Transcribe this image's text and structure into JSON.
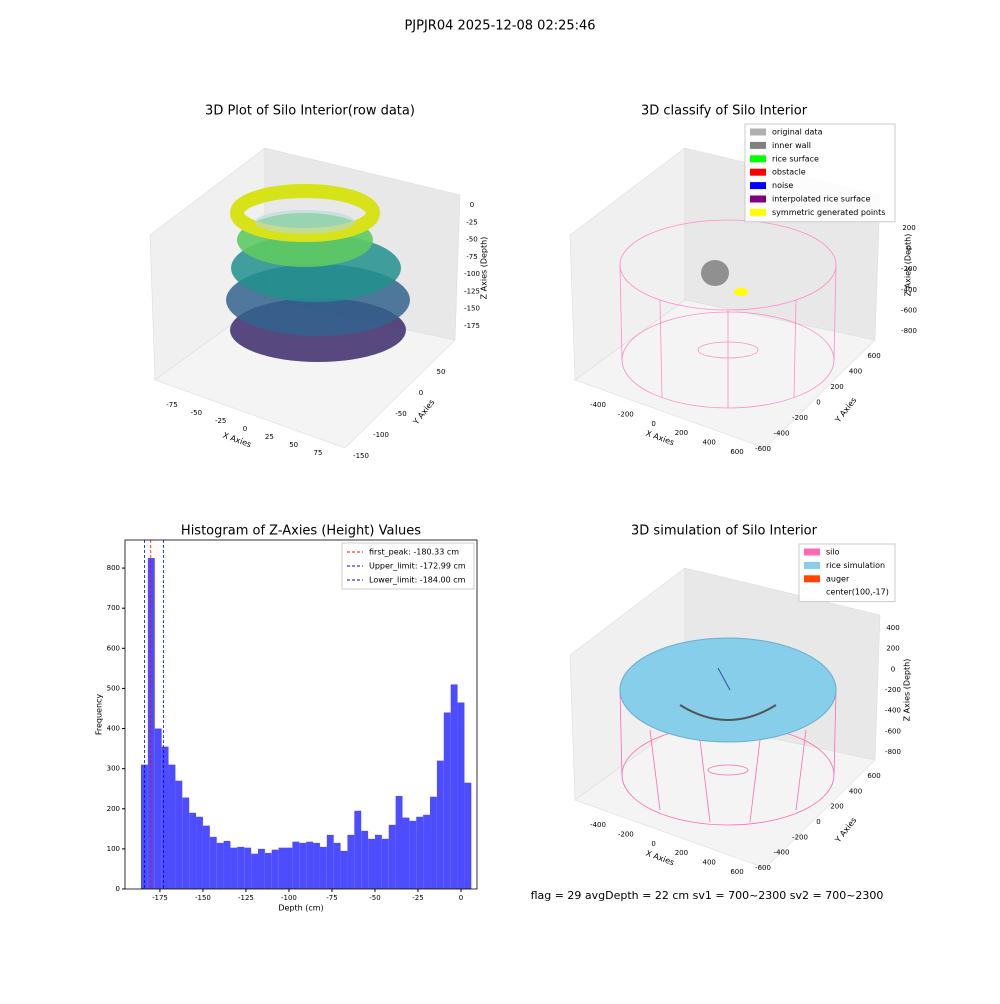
{
  "title": "PJPJR04 2025-12-08 02:25:46",
  "footer": "flag = 29  avgDepth = 22 cm    sv1 = 700~2300  sv2 = 700~2300",
  "chart_data": [
    {
      "type": "scatter3d",
      "title": "3D Plot of Silo Interior(row data)",
      "xlabel": "X Axies",
      "ylabel": "Y Axies",
      "zlabel": "Z Axies (Depth)",
      "xticks": [
        -75,
        -50,
        -25,
        0,
        25,
        50,
        75
      ],
      "yticks": [
        -150,
        -100,
        -50,
        0,
        50
      ],
      "zticks": [
        0,
        -25,
        -50,
        -75,
        -100,
        -125,
        -150,
        -175
      ]
    },
    {
      "type": "scatter3d",
      "title": "3D classify of Silo Interior",
      "xlabel": "X Axies",
      "ylabel": "Y Axies",
      "zlabel": "Z Axies (Depth)",
      "xticks": [
        -400,
        -200,
        0,
        200,
        400,
        600
      ],
      "yticks": [
        -600,
        -400,
        -200,
        0,
        200,
        400,
        600
      ],
      "zticks": [
        200,
        0,
        -200,
        -400,
        -600,
        -800
      ],
      "legend": "upper right",
      "legend_items": [
        {
          "name": "original data",
          "color": "#b0b0b0"
        },
        {
          "name": "inner wall",
          "color": "#808080"
        },
        {
          "name": "rice surface",
          "color": "#00ff00"
        },
        {
          "name": "obstacle",
          "color": "#ff0000"
        },
        {
          "name": "noise",
          "color": "#0000ff"
        },
        {
          "name": "interpolated rice surface",
          "color": "#800080"
        },
        {
          "name": "symmetric generated points",
          "color": "#ffff00"
        }
      ]
    },
    {
      "type": "histogram",
      "title": "Histogram of Z-Axies (Height) Values",
      "xlabel": "Depth (cm)",
      "ylabel": "Frequency",
      "color": "#4d4dff",
      "bins": [
        -186,
        -182,
        -178,
        -174,
        -170,
        -166,
        -162,
        -158,
        -154,
        -150,
        -146,
        -142,
        -138,
        -134,
        -130,
        -126,
        -122,
        -118,
        -114,
        -110,
        -106,
        -102,
        -98,
        -94,
        -90,
        -86,
        -82,
        -78,
        -74,
        -70,
        -66,
        -62,
        -58,
        -54,
        -50,
        -46,
        -42,
        -38,
        -34,
        -30,
        -26,
        -22,
        -18,
        -14,
        -10,
        -6,
        -2,
        2,
        6
      ],
      "counts": [
        310,
        825,
        400,
        355,
        310,
        270,
        228,
        190,
        180,
        158,
        130,
        115,
        120,
        103,
        105,
        103,
        88,
        100,
        90,
        98,
        103,
        103,
        118,
        115,
        118,
        115,
        105,
        135,
        115,
        95,
        135,
        195,
        145,
        125,
        135,
        125,
        160,
        232,
        178,
        170,
        180,
        185,
        230,
        320,
        440,
        510,
        465,
        265
      ],
      "xlim": [
        -195.3,
        9.3
      ],
      "ylim": [
        0,
        870
      ],
      "xticks": [
        -175,
        -150,
        -125,
        -100,
        -75,
        -50,
        -25,
        0
      ],
      "yticks": [
        0,
        100,
        200,
        300,
        400,
        500,
        600,
        700,
        800
      ],
      "legend": "upper right",
      "vlines": [
        {
          "name": "first_peak: -180.33 cm",
          "value": -180.33,
          "color": "#ff0000"
        },
        {
          "name": "Upper_limit: -172.99 cm",
          "value": -172.99,
          "color": "#0000ff"
        },
        {
          "name": "Lower_limit: -184.00 cm",
          "value": -184.0,
          "color": "#0000ff"
        }
      ]
    },
    {
      "type": "surface3d",
      "title": "3D simulation of Silo Interior",
      "xlabel": "X Axies",
      "ylabel": "Y Axies",
      "zlabel": "Z Axies (Depth)",
      "xticks": [
        -400,
        -200,
        0,
        200,
        400,
        600
      ],
      "yticks": [
        -600,
        -400,
        -200,
        0,
        200,
        400,
        600
      ],
      "zticks": [
        400,
        200,
        0,
        -200,
        -400,
        -600,
        -800
      ],
      "legend": "upper right",
      "legend_items": [
        {
          "name": "silo",
          "color": "#ff69b4"
        },
        {
          "name": "rice simulation",
          "color": "#87ceeb"
        },
        {
          "name": "auger",
          "color": "#ff4500"
        },
        {
          "name": "center(100,-17)",
          "color": null
        }
      ]
    }
  ]
}
